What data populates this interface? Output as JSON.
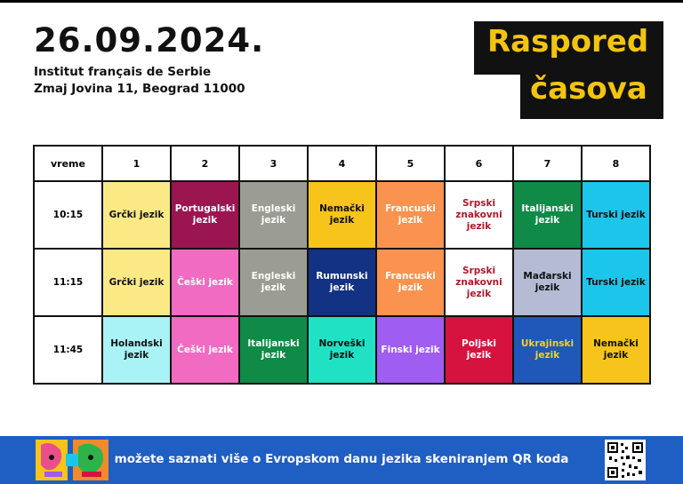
{
  "header": {
    "date": "26.09.2024.",
    "institution": "Institut français de Serbie",
    "address": "Zmaj Jovina 11, Beograd 11000",
    "title_line1": "Raspored",
    "title_line2": "časova"
  },
  "table": {
    "corner": "vreme",
    "columns": [
      "1",
      "2",
      "3",
      "4",
      "5",
      "6",
      "7",
      "8"
    ],
    "rows": [
      {
        "time": "10:15",
        "cells": [
          {
            "text": "Grčki jezik",
            "bg": "#fbe985",
            "fg": "#111111"
          },
          {
            "text": "Portugalski jezik",
            "bg": "#9b1550",
            "fg": "#ffffff"
          },
          {
            "text": "Engleski jezik",
            "bg": "#9b9c93",
            "fg": "#ffffff"
          },
          {
            "text": "Nemački jezik",
            "bg": "#f6c41a",
            "fg": "#111111"
          },
          {
            "text": "Francuski jezik",
            "bg": "#f9934f",
            "fg": "#ffffff"
          },
          {
            "text": "Srpski znakovni jezik",
            "bg": "#ffffff",
            "fg": "#b0182c"
          },
          {
            "text": "Italijanski jezik",
            "bg": "#0f8a47",
            "fg": "#ffffff"
          },
          {
            "text": "Turski jezik",
            "bg": "#1bc6ea",
            "fg": "#111111"
          }
        ]
      },
      {
        "time": "11:15",
        "cells": [
          {
            "text": "Grčki jezik",
            "bg": "#fbe985",
            "fg": "#111111"
          },
          {
            "text": "Češki jezik",
            "bg": "#f06bc1",
            "fg": "#ffffff"
          },
          {
            "text": "Engleski jezik",
            "bg": "#9b9c93",
            "fg": "#ffffff"
          },
          {
            "text": "Rumunski jezik",
            "bg": "#133283",
            "fg": "#ffffff"
          },
          {
            "text": "Francuski jezik",
            "bg": "#f9934f",
            "fg": "#ffffff"
          },
          {
            "text": "Srpski znakovni jezik",
            "bg": "#ffffff",
            "fg": "#b0182c"
          },
          {
            "text": "Mađarski jezik",
            "bg": "#b5bbd4",
            "fg": "#111111"
          },
          {
            "text": "Turski jezik",
            "bg": "#1bc6ea",
            "fg": "#111111"
          }
        ]
      },
      {
        "time": "11:45",
        "cells": [
          {
            "text": "Holandski jezik",
            "bg": "#a9f2f6",
            "fg": "#111111"
          },
          {
            "text": "Češki jezik",
            "bg": "#f06bc1",
            "fg": "#ffffff"
          },
          {
            "text": "Italijanski jezik",
            "bg": "#0f8a47",
            "fg": "#ffffff"
          },
          {
            "text": "Norveški jezik",
            "bg": "#21e1c4",
            "fg": "#111111"
          },
          {
            "text": "Finski jezik",
            "bg": "#9f5df2",
            "fg": "#ffffff"
          },
          {
            "text": "Poljski jezik",
            "bg": "#d6133f",
            "fg": "#ffffff"
          },
          {
            "text": "Ukrajinski jezik",
            "bg": "#1f58b8",
            "fg": "#f6d21c"
          },
          {
            "text": "Nemački jezik",
            "bg": "#f6c41a",
            "fg": "#111111"
          }
        ]
      }
    ]
  },
  "footer": {
    "text": "možete saznati više o Evropskom danu jezika skeniranjem QR koda",
    "bg": "#1f5ec2"
  },
  "icons": {
    "logo": "european-day-of-languages-logo",
    "qr": "qr-code-icon"
  },
  "colors": {
    "title_accent": "#f2c40f",
    "title_bg": "#111111"
  }
}
